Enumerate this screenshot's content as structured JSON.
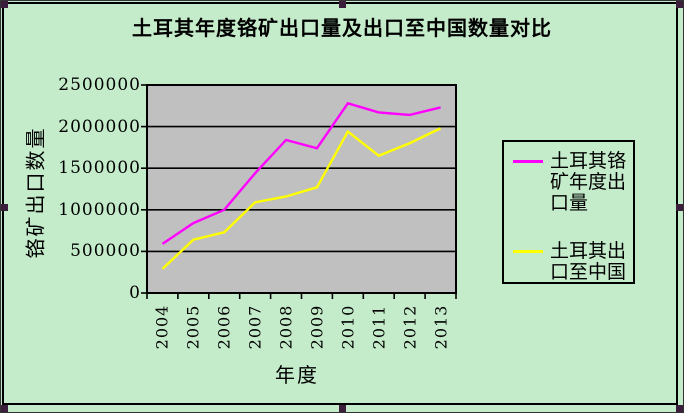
{
  "chart_data": {
    "type": "line",
    "title": "土耳其年度铬矿出口量及出口至中国数量对比",
    "xlabel": "年度",
    "ylabel": "铬矿出口数量",
    "categories": [
      "2004",
      "2005",
      "2006",
      "2007",
      "2008",
      "2009",
      "2010",
      "2011",
      "2012",
      "2013"
    ],
    "series": [
      {
        "name": "土耳其铬矿年度出口量",
        "color": "#ff00ff",
        "values": [
          590000,
          840000,
          1000000,
          1440000,
          1840000,
          1740000,
          2280000,
          2170000,
          2140000,
          2230000
        ]
      },
      {
        "name": "土耳其出口至中国",
        "color": "#ffff00",
        "values": [
          290000,
          640000,
          730000,
          1090000,
          1160000,
          1270000,
          1940000,
          1650000,
          1800000,
          1980000
        ]
      }
    ],
    "ylim": [
      0,
      2500000
    ],
    "yticks": [
      0,
      500000,
      1000000,
      1500000,
      2000000,
      2500000
    ],
    "grid": true,
    "legend_position": "right"
  },
  "colors": {
    "chart_bg": "#c4ecca",
    "plot_bg": "#c0c0c0",
    "gridline": "#000000",
    "frame": "#000000",
    "selection_handle": "#3b1e3b"
  }
}
